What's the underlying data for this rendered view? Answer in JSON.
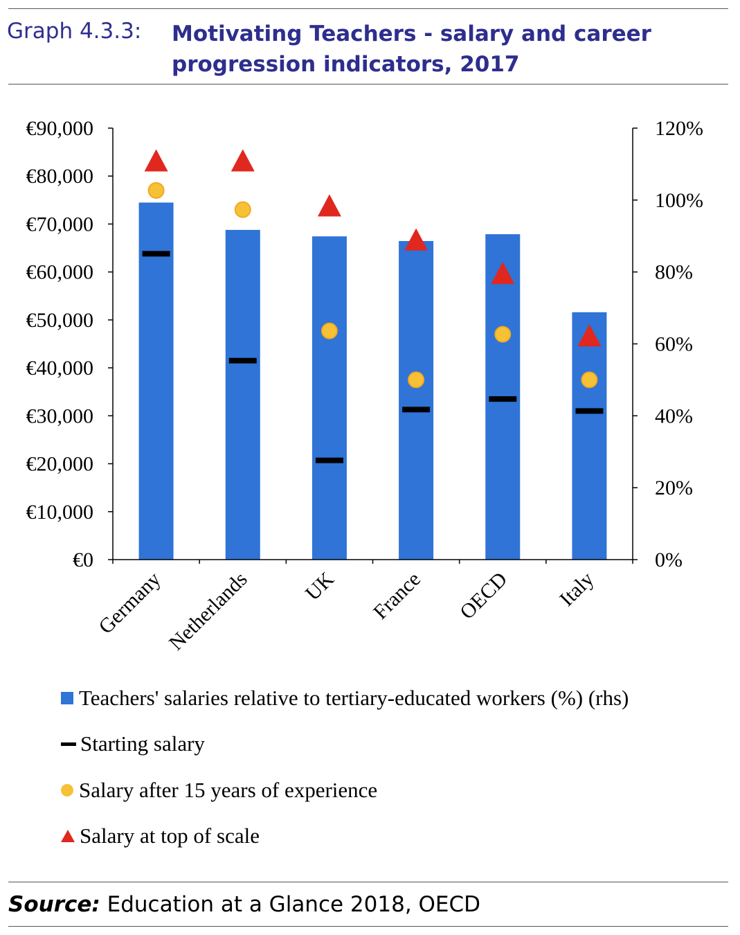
{
  "header": {
    "label": "Graph 4.3.3:",
    "title": "Motivating Teachers - salary and career progression indicators, 2017"
  },
  "colors": {
    "title": "#2e2e8e",
    "bar": "#2f74d6",
    "starting": "#000000",
    "after15": "#f7c137",
    "top": "#e0281e"
  },
  "chart_data": {
    "type": "bar",
    "categories": [
      "Germany",
      "Netherlands",
      "UK",
      "France",
      "OECD",
      "Italy"
    ],
    "y_left": {
      "ticks": [
        "€0",
        "€10,000",
        "€20,000",
        "€30,000",
        "€40,000",
        "€50,000",
        "€60,000",
        "€70,000",
        "€80,000",
        "€90,000"
      ],
      "ylim": [
        0,
        90000
      ]
    },
    "y_right": {
      "ticks": [
        "0%",
        "20%",
        "40%",
        "60%",
        "80%",
        "100%",
        "120%"
      ],
      "ylim": [
        0,
        120
      ]
    },
    "series": [
      {
        "name": "Teachers' salaries relative to tertiary-educated workers (%) (rhs)",
        "kind": "bar",
        "axis": "right",
        "values": [
          99.3,
          91.7,
          89.9,
          88.6,
          90.5,
          68.8
        ]
      },
      {
        "name": "Starting salary",
        "kind": "dash",
        "axis": "left",
        "values": [
          63800,
          41500,
          20700,
          31300,
          33500,
          31000
        ]
      },
      {
        "name": "Salary after 15 years of experience",
        "kind": "dot",
        "axis": "left",
        "values": [
          77000,
          73000,
          47700,
          37500,
          47000,
          37500
        ]
      },
      {
        "name": "Salary at top of scale",
        "kind": "triangle",
        "axis": "left",
        "values": [
          83000,
          83000,
          73600,
          66500,
          59500,
          46500
        ]
      }
    ],
    "grid": false,
    "legend_position": "bottom"
  },
  "source": {
    "label": "Source:",
    "text": " Education at a Glance 2018, OECD"
  }
}
